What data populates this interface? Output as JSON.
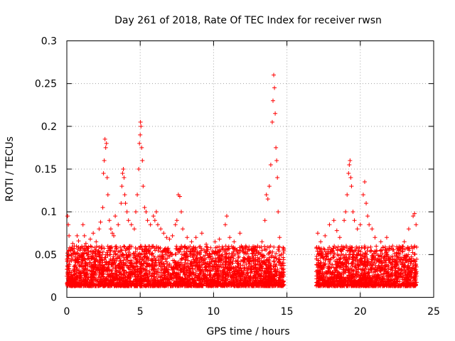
{
  "chart_data": {
    "type": "scatter",
    "title": "Day 261 of 2018, Rate Of TEC Index for receiver rwsn",
    "xlabel": "GPS time / hours",
    "ylabel": "ROTI / TECUs",
    "xlim": [
      0,
      25
    ],
    "ylim": [
      0,
      0.3
    ],
    "xticks": [
      0,
      5,
      10,
      15,
      20,
      25
    ],
    "xtick_labels": [
      "0",
      "5",
      "10",
      "15",
      "20",
      "25"
    ],
    "yticks": [
      0,
      0.05,
      0.1,
      0.15,
      0.2,
      0.25,
      0.3
    ],
    "ytick_labels": [
      "0",
      "0.05",
      "0.1",
      "0.15",
      "0.2",
      "0.25",
      "0.3"
    ],
    "grid": true,
    "marker": "+",
    "marker_color": "#ff0000",
    "series": [
      {
        "name": "ROTI",
        "points": [
          [
            0.05,
            0.095
          ],
          [
            0.1,
            0.085
          ],
          [
            0.15,
            0.072
          ],
          [
            0.2,
            0.058
          ],
          [
            0.3,
            0.045
          ],
          [
            0.4,
            0.063
          ],
          [
            0.5,
            0.052
          ],
          [
            0.6,
            0.041
          ],
          [
            0.7,
            0.072
          ],
          [
            0.8,
            0.066
          ],
          [
            0.9,
            0.055
          ],
          [
            1.0,
            0.048
          ],
          [
            1.1,
            0.085
          ],
          [
            1.2,
            0.072
          ],
          [
            1.3,
            0.063
          ],
          [
            1.5,
            0.05
          ],
          [
            1.6,
            0.068
          ],
          [
            1.8,
            0.075
          ],
          [
            1.9,
            0.058
          ],
          [
            2.0,
            0.065
          ],
          [
            2.2,
            0.08
          ],
          [
            2.3,
            0.088
          ],
          [
            2.45,
            0.105
          ],
          [
            2.5,
            0.145
          ],
          [
            2.55,
            0.16
          ],
          [
            2.6,
            0.185
          ],
          [
            2.65,
            0.175
          ],
          [
            2.7,
            0.18
          ],
          [
            2.75,
            0.14
          ],
          [
            2.8,
            0.12
          ],
          [
            2.9,
            0.09
          ],
          [
            3.0,
            0.08
          ],
          [
            3.1,
            0.075
          ],
          [
            3.2,
            0.072
          ],
          [
            3.3,
            0.095
          ],
          [
            3.5,
            0.085
          ],
          [
            3.7,
            0.11
          ],
          [
            3.75,
            0.13
          ],
          [
            3.8,
            0.145
          ],
          [
            3.85,
            0.15
          ],
          [
            3.9,
            0.14
          ],
          [
            3.95,
            0.12
          ],
          [
            4.0,
            0.11
          ],
          [
            4.1,
            0.1
          ],
          [
            4.2,
            0.09
          ],
          [
            4.4,
            0.085
          ],
          [
            4.6,
            0.08
          ],
          [
            4.7,
            0.1
          ],
          [
            4.8,
            0.12
          ],
          [
            4.9,
            0.15
          ],
          [
            4.95,
            0.18
          ],
          [
            5.0,
            0.19
          ],
          [
            5.02,
            0.205
          ],
          [
            5.05,
            0.2
          ],
          [
            5.1,
            0.175
          ],
          [
            5.15,
            0.16
          ],
          [
            5.2,
            0.13
          ],
          [
            5.3,
            0.105
          ],
          [
            5.4,
            0.1
          ],
          [
            5.5,
            0.09
          ],
          [
            5.7,
            0.085
          ],
          [
            5.9,
            0.095
          ],
          [
            6.0,
            0.09
          ],
          [
            6.1,
            0.1
          ],
          [
            6.2,
            0.085
          ],
          [
            6.4,
            0.08
          ],
          [
            6.6,
            0.075
          ],
          [
            6.8,
            0.07
          ],
          [
            7.0,
            0.068
          ],
          [
            7.2,
            0.072
          ],
          [
            7.4,
            0.085
          ],
          [
            7.5,
            0.09
          ],
          [
            7.6,
            0.12
          ],
          [
            7.7,
            0.118
          ],
          [
            7.8,
            0.1
          ],
          [
            7.9,
            0.08
          ],
          [
            8.2,
            0.07
          ],
          [
            8.5,
            0.065
          ],
          [
            8.8,
            0.07
          ],
          [
            9.2,
            0.075
          ],
          [
            9.5,
            0.062
          ],
          [
            9.8,
            0.058
          ],
          [
            10.1,
            0.065
          ],
          [
            10.4,
            0.068
          ],
          [
            10.8,
            0.085
          ],
          [
            10.9,
            0.095
          ],
          [
            11.1,
            0.07
          ],
          [
            11.4,
            0.065
          ],
          [
            11.8,
            0.075
          ],
          [
            12.2,
            0.06
          ],
          [
            12.6,
            0.055
          ],
          [
            13.0,
            0.06
          ],
          [
            13.3,
            0.065
          ],
          [
            13.5,
            0.09
          ],
          [
            13.6,
            0.12
          ],
          [
            13.7,
            0.115
          ],
          [
            13.8,
            0.13
          ],
          [
            13.9,
            0.155
          ],
          [
            14.0,
            0.205
          ],
          [
            14.05,
            0.23
          ],
          [
            14.1,
            0.26
          ],
          [
            14.15,
            0.245
          ],
          [
            14.2,
            0.215
          ],
          [
            14.25,
            0.175
          ],
          [
            14.3,
            0.16
          ],
          [
            14.35,
            0.14
          ],
          [
            14.4,
            0.1
          ],
          [
            14.5,
            0.07
          ],
          [
            14.6,
            0.05
          ],
          [
            14.7,
            0.04
          ],
          [
            17.1,
            0.075
          ],
          [
            17.3,
            0.065
          ],
          [
            17.6,
            0.072
          ],
          [
            17.9,
            0.085
          ],
          [
            18.2,
            0.09
          ],
          [
            18.4,
            0.078
          ],
          [
            18.6,
            0.07
          ],
          [
            18.9,
            0.09
          ],
          [
            19.0,
            0.1
          ],
          [
            19.1,
            0.12
          ],
          [
            19.2,
            0.145
          ],
          [
            19.25,
            0.155
          ],
          [
            19.3,
            0.16
          ],
          [
            19.35,
            0.14
          ],
          [
            19.4,
            0.13
          ],
          [
            19.5,
            0.1
          ],
          [
            19.6,
            0.09
          ],
          [
            19.8,
            0.08
          ],
          [
            20.0,
            0.085
          ],
          [
            20.2,
            0.12
          ],
          [
            20.3,
            0.135
          ],
          [
            20.4,
            0.11
          ],
          [
            20.5,
            0.095
          ],
          [
            20.6,
            0.085
          ],
          [
            20.8,
            0.08
          ],
          [
            21.0,
            0.07
          ],
          [
            21.4,
            0.065
          ],
          [
            21.8,
            0.07
          ],
          [
            22.2,
            0.06
          ],
          [
            22.6,
            0.055
          ],
          [
            23.0,
            0.065
          ],
          [
            23.3,
            0.08
          ],
          [
            23.6,
            0.095
          ],
          [
            23.7,
            0.098
          ],
          [
            23.8,
            0.085
          ]
        ],
        "bands": [
          {
            "x_start": 0.0,
            "x_end": 14.8,
            "y_min": 0.005,
            "y_max": 0.06,
            "density": 2.2
          },
          {
            "x_start": 17.0,
            "x_end": 23.85,
            "y_min": 0.005,
            "y_max": 0.06,
            "density": 2.2
          }
        ]
      }
    ]
  }
}
